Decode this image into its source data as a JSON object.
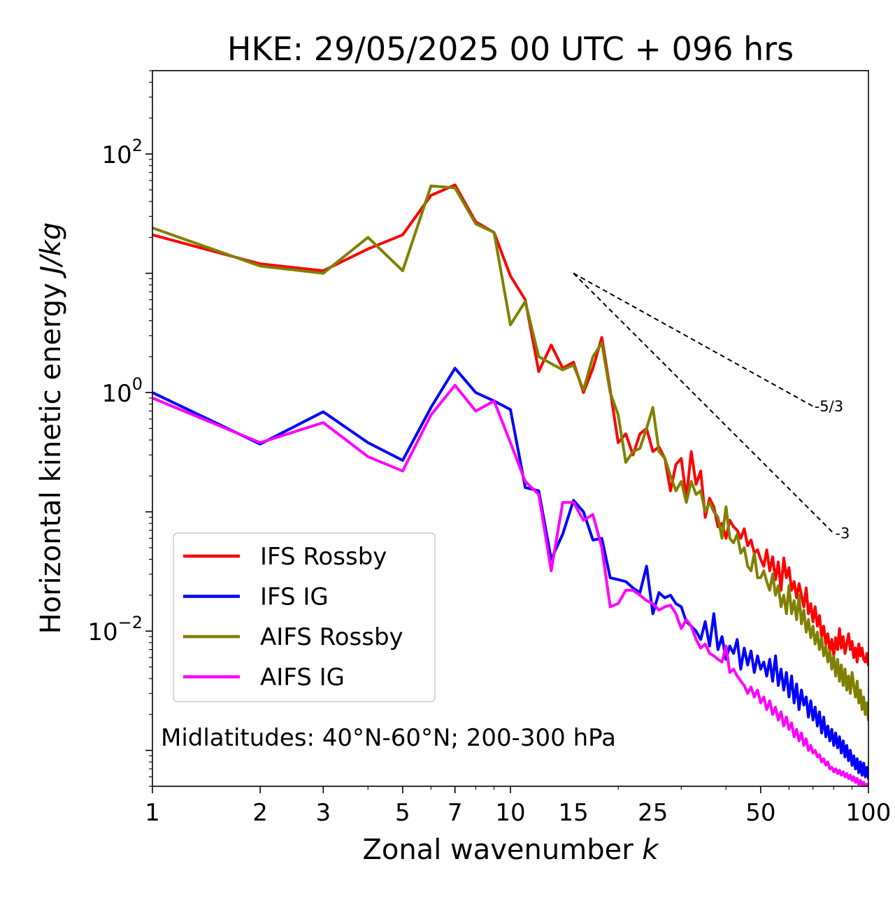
{
  "chart_data": {
    "type": "line",
    "title": "HKE: 29/05/2025 00 UTC + 096 hrs",
    "xlabel": "Zonal wavenumber",
    "xlabel_var": "k",
    "ylabel": "Horizontal kinetic energy",
    "ylabel_unit": "J/kg",
    "xscale": "log",
    "yscale": "log",
    "xlim": [
      1,
      100
    ],
    "ylim": [
      0.0005,
      500
    ],
    "grid": false,
    "legend_position": "lower-left",
    "annotation": "Midlatitudes: 40°N-60°N; 200-300 hPa",
    "x_tick_values": [
      1,
      2,
      3,
      5,
      7,
      10,
      15,
      25,
      50,
      100
    ],
    "x_tick_labels": [
      "1",
      "2",
      "3",
      "5",
      "7",
      "10",
      "15",
      "25",
      "50",
      "100"
    ],
    "y_tick_values": [
      100,
      1,
      0.01
    ],
    "y_tick_labels": [
      {
        "base": "10",
        "exp": "2"
      },
      {
        "base": "10",
        "exp": "0"
      },
      {
        "base": "10",
        "exp": "−2"
      }
    ],
    "reference_lines": [
      {
        "label": "-5/3",
        "slope": -1.6667,
        "x_start": 15,
        "y_start": 10,
        "x_end": 70
      },
      {
        "label": "-3",
        "slope": -3,
        "x_start": 15,
        "y_start": 10,
        "x_end": 80
      }
    ],
    "series": [
      {
        "name": "IFS Rossby",
        "color": "#ff0000",
        "x": [
          1,
          2,
          3,
          4,
          5,
          6,
          7,
          8,
          9,
          10,
          11,
          12,
          13,
          14,
          15,
          16,
          17,
          18,
          19,
          20,
          21,
          22,
          23,
          24,
          25,
          26,
          27,
          28,
          29,
          30,
          31,
          32,
          33,
          34,
          35,
          36,
          37,
          38,
          39,
          40,
          41,
          42,
          43,
          44,
          45,
          46,
          47,
          48,
          49,
          50,
          51,
          52,
          53,
          54,
          55,
          56,
          57,
          58,
          59,
          60,
          61,
          62,
          63,
          64,
          65,
          66,
          67,
          68,
          69,
          70,
          71,
          72,
          73,
          74,
          75,
          76,
          77,
          78,
          79,
          80,
          81,
          82,
          83,
          84,
          85,
          86,
          87,
          88,
          89,
          90,
          91,
          92,
          93,
          94,
          95,
          96,
          97,
          98,
          99,
          100
        ],
        "y": [
          21,
          12,
          10.5,
          16,
          21,
          45,
          55,
          27,
          22,
          9.5,
          6,
          1.5,
          2.5,
          1.6,
          1.8,
          1.0,
          1.6,
          2.9,
          1.05,
          0.38,
          0.45,
          0.3,
          0.45,
          0.5,
          0.32,
          0.35,
          0.28,
          0.15,
          0.25,
          0.28,
          0.13,
          0.32,
          0.17,
          0.22,
          0.09,
          0.13,
          0.11,
          0.075,
          0.08,
          0.06,
          0.085,
          0.075,
          0.07,
          0.06,
          0.072,
          0.052,
          0.058,
          0.045,
          0.048,
          0.04,
          0.035,
          0.048,
          0.032,
          0.042,
          0.027,
          0.038,
          0.022,
          0.041,
          0.028,
          0.034,
          0.022,
          0.026,
          0.019,
          0.025,
          0.02,
          0.016,
          0.023,
          0.014,
          0.017,
          0.012,
          0.016,
          0.011,
          0.0135,
          0.009,
          0.011,
          0.0078,
          0.0095,
          0.0068,
          0.0085,
          0.0062,
          0.0088,
          0.007,
          0.0105,
          0.0072,
          0.009,
          0.0065,
          0.0078,
          0.0095,
          0.007,
          0.0082,
          0.006,
          0.0072,
          0.0055,
          0.0078,
          0.0062,
          0.0072,
          0.0058,
          0.0055,
          0.0065,
          0.0052
        ]
      },
      {
        "name": "IFS IG",
        "color": "#0000ff",
        "x": [
          1,
          2,
          3,
          4,
          5,
          6,
          7,
          8,
          9,
          10,
          11,
          12,
          13,
          14,
          15,
          16,
          17,
          18,
          19,
          20,
          21,
          22,
          23,
          24,
          25,
          26,
          27,
          28,
          29,
          30,
          31,
          32,
          33,
          34,
          35,
          36,
          37,
          38,
          39,
          40,
          41,
          42,
          43,
          44,
          45,
          46,
          47,
          48,
          49,
          50,
          51,
          52,
          53,
          54,
          55,
          56,
          57,
          58,
          59,
          60,
          61,
          62,
          63,
          64,
          65,
          66,
          67,
          68,
          69,
          70,
          71,
          72,
          73,
          74,
          75,
          76,
          77,
          78,
          79,
          80,
          81,
          82,
          83,
          84,
          85,
          86,
          87,
          88,
          89,
          90,
          91,
          92,
          93,
          94,
          95,
          96,
          97,
          98,
          99,
          100
        ],
        "y": [
          1.0,
          0.37,
          0.69,
          0.38,
          0.27,
          0.75,
          1.6,
          1.0,
          0.85,
          0.72,
          0.16,
          0.15,
          0.04,
          0.065,
          0.125,
          0.1,
          0.058,
          0.06,
          0.028,
          0.027,
          0.026,
          0.023,
          0.021,
          0.035,
          0.014,
          0.021,
          0.019,
          0.02,
          0.017,
          0.016,
          0.012,
          0.011,
          0.01,
          0.0085,
          0.012,
          0.0075,
          0.014,
          0.007,
          0.009,
          0.0058,
          0.0075,
          0.0065,
          0.0085,
          0.0048,
          0.0072,
          0.0052,
          0.0068,
          0.0045,
          0.0062,
          0.0048,
          0.0055,
          0.0042,
          0.0058,
          0.0038,
          0.0062,
          0.0035,
          0.0048,
          0.0032,
          0.0045,
          0.0028,
          0.0042,
          0.0025,
          0.0036,
          0.0022,
          0.0032,
          0.0024,
          0.0028,
          0.0019,
          0.0026,
          0.0018,
          0.0023,
          0.0016,
          0.0021,
          0.0014,
          0.0019,
          0.0013,
          0.0016,
          0.0012,
          0.0015,
          0.0011,
          0.0014,
          0.00105,
          0.0013,
          0.00095,
          0.0012,
          0.00088,
          0.0011,
          0.00082,
          0.001,
          0.00075,
          0.0009,
          0.0007,
          0.00085,
          0.00065,
          0.0008,
          0.00062,
          0.00078,
          0.0006,
          0.00072,
          0.00058
        ]
      },
      {
        "name": "AIFS Rossby",
        "color": "#808000",
        "x": [
          1,
          2,
          3,
          4,
          5,
          6,
          7,
          8,
          9,
          10,
          11,
          12,
          13,
          14,
          15,
          16,
          17,
          18,
          19,
          20,
          21,
          22,
          23,
          24,
          25,
          26,
          27,
          28,
          29,
          30,
          31,
          32,
          33,
          34,
          35,
          36,
          37,
          38,
          39,
          40,
          41,
          42,
          43,
          44,
          45,
          46,
          47,
          48,
          49,
          50,
          51,
          52,
          53,
          54,
          55,
          56,
          57,
          58,
          59,
          60,
          61,
          62,
          63,
          64,
          65,
          66,
          67,
          68,
          69,
          70,
          71,
          72,
          73,
          74,
          75,
          76,
          77,
          78,
          79,
          80,
          81,
          82,
          83,
          84,
          85,
          86,
          87,
          88,
          89,
          90,
          91,
          92,
          93,
          94,
          95,
          96,
          97,
          98,
          99,
          100
        ],
        "y": [
          24,
          11.5,
          10,
          20,
          10.5,
          54,
          52,
          26,
          22,
          3.7,
          5.8,
          2.0,
          1.75,
          1.55,
          1.7,
          1.05,
          2.0,
          2.6,
          1.0,
          0.65,
          0.26,
          0.32,
          0.34,
          0.5,
          0.75,
          0.32,
          0.28,
          0.2,
          0.15,
          0.18,
          0.12,
          0.18,
          0.14,
          0.15,
          0.1,
          0.12,
          0.1,
          0.09,
          0.06,
          0.11,
          0.06,
          0.055,
          0.065,
          0.045,
          0.05,
          0.035,
          0.032,
          0.045,
          0.028,
          0.028,
          0.032,
          0.026,
          0.022,
          0.03,
          0.02,
          0.024,
          0.016,
          0.02,
          0.014,
          0.024,
          0.014,
          0.018,
          0.0125,
          0.02,
          0.0115,
          0.015,
          0.0098,
          0.0125,
          0.0088,
          0.011,
          0.0078,
          0.0098,
          0.007,
          0.0088,
          0.0062,
          0.0075,
          0.0055,
          0.0068,
          0.0048,
          0.0062,
          0.0042,
          0.0058,
          0.0038,
          0.0052,
          0.0035,
          0.0048,
          0.0032,
          0.0042,
          0.003,
          0.0045,
          0.0035,
          0.0028,
          0.0038,
          0.0025,
          0.0032,
          0.0022,
          0.0028,
          0.002,
          0.0025,
          0.0018
        ]
      },
      {
        "name": "AIFS IG",
        "color": "#ff00ff",
        "x": [
          1,
          2,
          3,
          4,
          5,
          6,
          7,
          8,
          9,
          10,
          11,
          12,
          13,
          14,
          15,
          16,
          17,
          18,
          19,
          20,
          21,
          22,
          23,
          24,
          25,
          26,
          27,
          28,
          29,
          30,
          31,
          32,
          33,
          34,
          35,
          36,
          37,
          38,
          39,
          40,
          41,
          42,
          43,
          44,
          45,
          46,
          47,
          48,
          49,
          50,
          51,
          52,
          53,
          54,
          55,
          56,
          57,
          58,
          59,
          60,
          61,
          62,
          63,
          64,
          65,
          66,
          67,
          68,
          69,
          70,
          71,
          72,
          73,
          74,
          75,
          76,
          77,
          78,
          79,
          80,
          81,
          82,
          83,
          84,
          85,
          86,
          87,
          88,
          89,
          90,
          91,
          92,
          93,
          94,
          95,
          96,
          97,
          98,
          99,
          100
        ],
        "y": [
          0.9,
          0.38,
          0.56,
          0.29,
          0.22,
          0.65,
          1.15,
          0.7,
          0.85,
          0.38,
          0.18,
          0.14,
          0.032,
          0.12,
          0.12,
          0.085,
          0.095,
          0.05,
          0.016,
          0.017,
          0.022,
          0.022,
          0.02,
          0.018,
          0.017,
          0.015,
          0.016,
          0.0165,
          0.014,
          0.0105,
          0.0125,
          0.011,
          0.0085,
          0.0072,
          0.0078,
          0.0065,
          0.0062,
          0.0058,
          0.0055,
          0.0075,
          0.0045,
          0.0048,
          0.0042,
          0.0038,
          0.0035,
          0.003,
          0.0034,
          0.0028,
          0.0032,
          0.0025,
          0.0028,
          0.0022,
          0.0026,
          0.002,
          0.0023,
          0.0018,
          0.0021,
          0.0016,
          0.0019,
          0.0015,
          0.0017,
          0.0013,
          0.0015,
          0.0012,
          0.0014,
          0.0011,
          0.00125,
          0.001,
          0.0011,
          0.00095,
          0.001,
          0.00088,
          0.00092,
          0.0008,
          0.00085,
          0.00075,
          0.0008,
          0.0007,
          0.00072,
          0.00066,
          0.0007,
          0.00064,
          0.00068,
          0.00062,
          0.00066,
          0.0006,
          0.00064,
          0.00058,
          0.00062,
          0.00056,
          0.0006,
          0.00054,
          0.00058,
          0.00052,
          0.00056,
          0.0005,
          0.00054,
          0.00049,
          0.00052,
          0.00048
        ]
      }
    ]
  }
}
